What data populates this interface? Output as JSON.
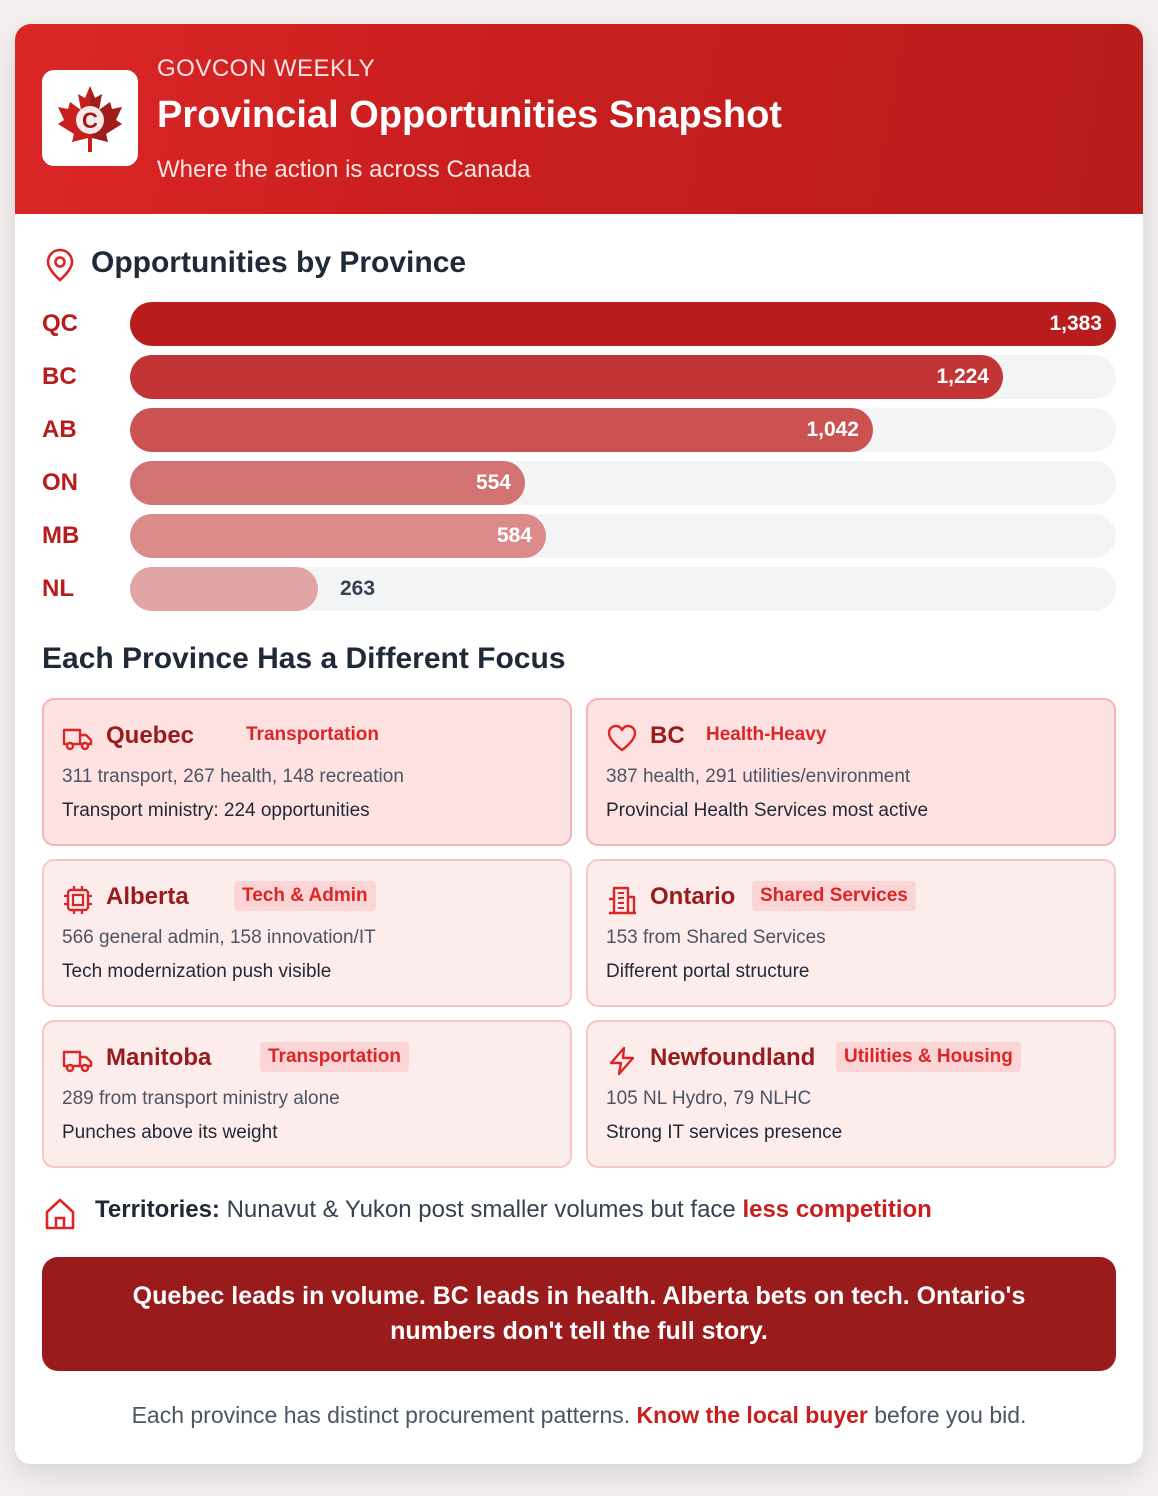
{
  "header": {
    "kicker": "GOVCON WEEKLY",
    "title": "Provincial Opportunities Snapshot",
    "subtitle": "Where the action is across Canada",
    "logo_icon": "maple-leaf-logo"
  },
  "chart_data": {
    "type": "bar",
    "orientation": "horizontal",
    "title": "Opportunities by Province",
    "categories": [
      "QC",
      "BC",
      "AB",
      "ON",
      "MB",
      "NL"
    ],
    "values": [
      1383,
      1224,
      1042,
      554,
      584,
      263
    ],
    "value_labels": [
      "1,383",
      "1,224",
      "1,042",
      "554",
      "584",
      "263"
    ],
    "xlim": [
      0,
      1383
    ],
    "colors": [
      "#b91c1c",
      "#c33535",
      "#cc5252",
      "#d37272",
      "#dc8b8b",
      "#e0a4a4"
    ],
    "grid": false
  },
  "focus": {
    "title": "Each Province Has a Different Focus",
    "cards": [
      {
        "icon": "truck-icon",
        "name": "Quebec",
        "tag": "Transportation",
        "line1": "311 transport, 267 health, 148 recreation",
        "line2": "Transport ministry: 224 opportunities"
      },
      {
        "icon": "heart-icon",
        "name": "BC",
        "tag": "Health-Heavy",
        "line1": "387 health, 291 utilities/environment",
        "line2": "Provincial Health Services most active"
      },
      {
        "icon": "cpu-icon",
        "name": "Alberta",
        "tag": "Tech & Admin",
        "line1": "566 general admin, 158 innovation/IT",
        "line2": "Tech modernization push visible"
      },
      {
        "icon": "building-icon",
        "name": "Ontario",
        "tag": "Shared Services",
        "line1": "153 from Shared Services",
        "line2": "Different portal structure"
      },
      {
        "icon": "truck-icon",
        "name": "Manitoba",
        "tag": "Transportation",
        "line1": "289 from transport ministry alone",
        "line2": "Punches above its weight"
      },
      {
        "icon": "bolt-icon",
        "name": "Newfoundland",
        "tag": "Utilities & Housing",
        "line1": "105 NL Hydro, 79 NLHC",
        "line2": "Strong IT services presence"
      }
    ]
  },
  "territories": {
    "label": "Territories:",
    "text": " Nunavut & Yukon post smaller volumes but face ",
    "highlight": "less competition"
  },
  "banner": {
    "text": "Quebec leads in volume. BC leads in health. Alberta bets on tech. Ontario's numbers don't tell the full story."
  },
  "footer": {
    "text_before": "Each province has distinct procurement patterns. ",
    "highlight": "Know the local buyer",
    "text_after": " before you bid."
  }
}
